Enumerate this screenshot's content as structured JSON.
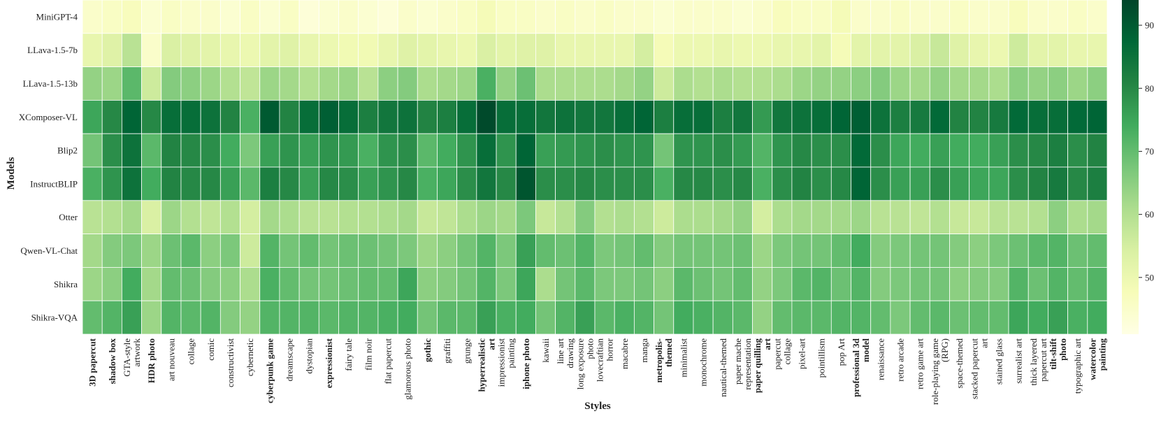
{
  "chart_data": {
    "type": "heatmap",
    "xlabel": "Styles",
    "ylabel": "Models",
    "models": [
      "MiniGPT-4",
      "LLava-1.5-7b",
      "LLava-1.5-13b",
      "XComposer-VL",
      "Blip2",
      "InstructBLIP",
      "Otter",
      "Qwen-VL-Chat",
      "Shikra",
      "Shikra-VQA"
    ],
    "styles": [
      {
        "label": [
          "3D papercut"
        ],
        "color": "#1f6fbf",
        "bold": true
      },
      {
        "label": [
          "shadow box"
        ],
        "color": "#1f6fbf",
        "bold": true
      },
      {
        "label": [
          "GTA-style",
          "artwork"
        ],
        "color": "#222222",
        "bold": false
      },
      {
        "label": [
          "HDR photo"
        ],
        "color": "#c8102e",
        "bold": true
      },
      {
        "label": [
          "art nouveau"
        ],
        "color": "#222222",
        "bold": false
      },
      {
        "label": [
          "collage"
        ],
        "color": "#222222",
        "bold": false
      },
      {
        "label": [
          "comic"
        ],
        "color": "#222222",
        "bold": false
      },
      {
        "label": [
          "constructivist"
        ],
        "color": "#222222",
        "bold": false
      },
      {
        "label": [
          "cybernetic"
        ],
        "color": "#222222",
        "bold": false
      },
      {
        "label": [
          "cyberpunk game"
        ],
        "color": "#1f6fbf",
        "bold": true
      },
      {
        "label": [
          "dreamscape"
        ],
        "color": "#222222",
        "bold": false
      },
      {
        "label": [
          "dystopian"
        ],
        "color": "#222222",
        "bold": false
      },
      {
        "label": [
          "expressionist"
        ],
        "color": "#c99a1a",
        "bold": true
      },
      {
        "label": [
          "fairy tale"
        ],
        "color": "#222222",
        "bold": false
      },
      {
        "label": [
          "film noir"
        ],
        "color": "#222222",
        "bold": false
      },
      {
        "label": [
          "flat papercut"
        ],
        "color": "#222222",
        "bold": false
      },
      {
        "label": [
          "glamorous photo"
        ],
        "color": "#222222",
        "bold": false
      },
      {
        "label": [
          "gothic"
        ],
        "color": "#1f6fbf",
        "bold": true
      },
      {
        "label": [
          "graffiti"
        ],
        "color": "#222222",
        "bold": false
      },
      {
        "label": [
          "grunge"
        ],
        "color": "#222222",
        "bold": false
      },
      {
        "label": [
          "hyperrealistic",
          "art"
        ],
        "color": "#c8102e",
        "bold": true
      },
      {
        "label": [
          "impressionist",
          "painting"
        ],
        "color": "#222222",
        "bold": false
      },
      {
        "label": [
          "iphone photo"
        ],
        "color": "#c8102e",
        "bold": true
      },
      {
        "label": [
          "kawaii"
        ],
        "color": "#222222",
        "bold": false
      },
      {
        "label": [
          "line art",
          "drawing"
        ],
        "color": "#222222",
        "bold": false
      },
      {
        "label": [
          "long exposure",
          "photo"
        ],
        "color": "#222222",
        "bold": false
      },
      {
        "label": [
          "lovecraftian",
          "horror"
        ],
        "color": "#222222",
        "bold": false
      },
      {
        "label": [
          "macabre"
        ],
        "color": "#222222",
        "bold": false
      },
      {
        "label": [
          "manga"
        ],
        "color": "#222222",
        "bold": false
      },
      {
        "label": [
          "metropolis-",
          "themed"
        ],
        "color": "#1f6fbf",
        "bold": true
      },
      {
        "label": [
          "minimalist"
        ],
        "color": "#222222",
        "bold": false
      },
      {
        "label": [
          "monochrome"
        ],
        "color": "#222222",
        "bold": false
      },
      {
        "label": [
          "nautical-themed"
        ],
        "color": "#222222",
        "bold": false
      },
      {
        "label": [
          "paper mache",
          "representation"
        ],
        "color": "#222222",
        "bold": false
      },
      {
        "label": [
          "paper quilling",
          "art"
        ],
        "color": "#1f6fbf",
        "bold": true
      },
      {
        "label": [
          "papercut",
          "collage"
        ],
        "color": "#222222",
        "bold": false
      },
      {
        "label": [
          "pixel-art"
        ],
        "color": "#222222",
        "bold": false
      },
      {
        "label": [
          "pointillism"
        ],
        "color": "#222222",
        "bold": false
      },
      {
        "label": [
          "pop Art"
        ],
        "color": "#222222",
        "bold": false
      },
      {
        "label": [
          "professional 3d",
          "model"
        ],
        "color": "#c99a1a",
        "bold": true
      },
      {
        "label": [
          "renaissance"
        ],
        "color": "#222222",
        "bold": false
      },
      {
        "label": [
          "retro arcade"
        ],
        "color": "#222222",
        "bold": false
      },
      {
        "label": [
          "retro game art"
        ],
        "color": "#222222",
        "bold": false
      },
      {
        "label": [
          "role-playing game",
          "(RPG)"
        ],
        "color": "#222222",
        "bold": false
      },
      {
        "label": [
          "space-themed"
        ],
        "color": "#222222",
        "bold": false
      },
      {
        "label": [
          "stacked papercut",
          "art"
        ],
        "color": "#222222",
        "bold": false
      },
      {
        "label": [
          "stained glass"
        ],
        "color": "#222222",
        "bold": false
      },
      {
        "label": [
          "surrealist art"
        ],
        "color": "#222222",
        "bold": false
      },
      {
        "label": [
          "thick layered",
          "papercut art"
        ],
        "color": "#222222",
        "bold": false
      },
      {
        "label": [
          "tilt-shift",
          "photo"
        ],
        "color": "#c99a1a",
        "bold": true
      },
      {
        "label": [
          "typographic art"
        ],
        "color": "#222222",
        "bold": false
      },
      {
        "label": [
          "watercolor",
          "painting"
        ],
        "color": "#c99a1a",
        "bold": true
      }
    ],
    "values": [
      [
        45,
        46,
        47,
        44,
        46,
        45,
        45,
        44,
        46,
        44,
        46,
        43,
        44,
        45,
        44,
        43,
        45,
        44,
        45,
        46,
        48,
        46,
        46,
        45,
        46,
        45,
        46,
        45,
        45,
        44,
        45,
        45,
        45,
        44,
        45,
        47,
        46,
        46,
        48,
        45,
        45,
        46,
        45,
        45,
        46,
        45,
        45,
        47,
        45,
        45,
        46,
        45
      ],
      [
        51,
        53,
        59,
        45,
        54,
        53,
        52,
        51,
        50,
        52,
        53,
        51,
        50,
        49,
        49,
        51,
        53,
        52,
        51,
        50,
        54,
        52,
        53,
        53,
        51,
        51,
        51,
        51,
        55,
        48,
        50,
        50,
        51,
        50,
        50,
        51,
        51,
        52,
        48,
        52,
        52,
        52,
        54,
        57,
        53,
        51,
        50,
        56,
        52,
        52,
        51,
        51
      ],
      [
        64,
        63,
        71,
        56,
        66,
        65,
        63,
        60,
        58,
        63,
        62,
        60,
        62,
        63,
        59,
        65,
        66,
        61,
        62,
        63,
        73,
        64,
        69,
        61,
        61,
        61,
        61,
        62,
        64,
        56,
        61,
        60,
        61,
        60,
        60,
        61,
        63,
        64,
        64,
        65,
        66,
        63,
        62,
        64,
        62,
        62,
        61,
        65,
        64,
        65,
        63,
        65
      ],
      [
        75,
        80,
        88,
        80,
        86,
        86,
        85,
        81,
        73,
        90,
        81,
        86,
        89,
        86,
        82,
        84,
        85,
        81,
        82,
        86,
        93,
        86,
        86,
        84,
        85,
        84,
        84,
        86,
        88,
        82,
        86,
        86,
        82,
        84,
        77,
        84,
        85,
        86,
        88,
        89,
        85,
        82,
        83,
        87,
        81,
        81,
        83,
        87,
        86,
        86,
        87,
        88
      ],
      [
        68,
        79,
        85,
        71,
        81,
        80,
        79,
        74,
        67,
        76,
        78,
        76,
        78,
        77,
        73,
        78,
        79,
        71,
        74,
        78,
        86,
        78,
        88,
        76,
        77,
        78,
        79,
        78,
        78,
        68,
        78,
        78,
        79,
        77,
        72,
        78,
        80,
        79,
        79,
        87,
        79,
        75,
        74,
        76,
        74,
        74,
        76,
        79,
        80,
        82,
        79,
        81
      ],
      [
        73,
        78,
        85,
        74,
        81,
        80,
        80,
        76,
        71,
        82,
        80,
        76,
        80,
        79,
        76,
        78,
        80,
        73,
        75,
        79,
        84,
        80,
        91,
        79,
        79,
        80,
        79,
        79,
        79,
        73,
        80,
        80,
        79,
        80,
        73,
        79,
        81,
        79,
        80,
        88,
        79,
        76,
        76,
        79,
        76,
        75,
        75,
        79,
        81,
        83,
        80,
        82
      ],
      [
        59,
        60,
        62,
        54,
        63,
        60,
        58,
        60,
        55,
        62,
        61,
        59,
        59,
        60,
        60,
        61,
        62,
        57,
        58,
        61,
        63,
        62,
        67,
        57,
        60,
        66,
        60,
        61,
        60,
        56,
        61,
        61,
        62,
        64,
        55,
        61,
        62,
        62,
        62,
        63,
        59,
        59,
        58,
        60,
        57,
        57,
        59,
        59,
        60,
        65,
        61,
        62
      ],
      [
        62,
        66,
        67,
        63,
        69,
        71,
        65,
        67,
        56,
        72,
        68,
        70,
        68,
        69,
        69,
        68,
        67,
        63,
        65,
        68,
        72,
        67,
        76,
        70,
        69,
        72,
        67,
        68,
        70,
        66,
        68,
        68,
        68,
        69,
        63,
        67,
        68,
        68,
        70,
        74,
        66,
        67,
        68,
        68,
        66,
        65,
        67,
        69,
        71,
        72,
        69,
        70
      ],
      [
        63,
        65,
        74,
        62,
        70,
        69,
        66,
        65,
        61,
        73,
        70,
        68,
        68,
        69,
        70,
        70,
        75,
        65,
        66,
        68,
        72,
        67,
        75,
        61,
        68,
        71,
        67,
        67,
        68,
        65,
        71,
        69,
        68,
        70,
        64,
        67,
        71,
        72,
        69,
        72,
        66,
        67,
        68,
        68,
        65,
        66,
        66,
        72,
        69,
        72,
        70,
        72
      ],
      [
        70,
        72,
        76,
        63,
        72,
        71,
        72,
        66,
        64,
        72,
        72,
        72,
        71,
        72,
        72,
        73,
        74,
        68,
        71,
        71,
        76,
        73,
        74,
        68,
        72,
        76,
        71,
        73,
        72,
        68,
        74,
        73,
        72,
        71,
        64,
        70,
        71,
        71,
        72,
        72,
        70,
        67,
        70,
        71,
        69,
        70,
        70,
        75,
        74,
        76,
        73,
        74
      ]
    ],
    "colorbar": {
      "ticks": [
        50,
        60,
        70,
        80,
        90
      ],
      "range": [
        41,
        94
      ]
    }
  }
}
